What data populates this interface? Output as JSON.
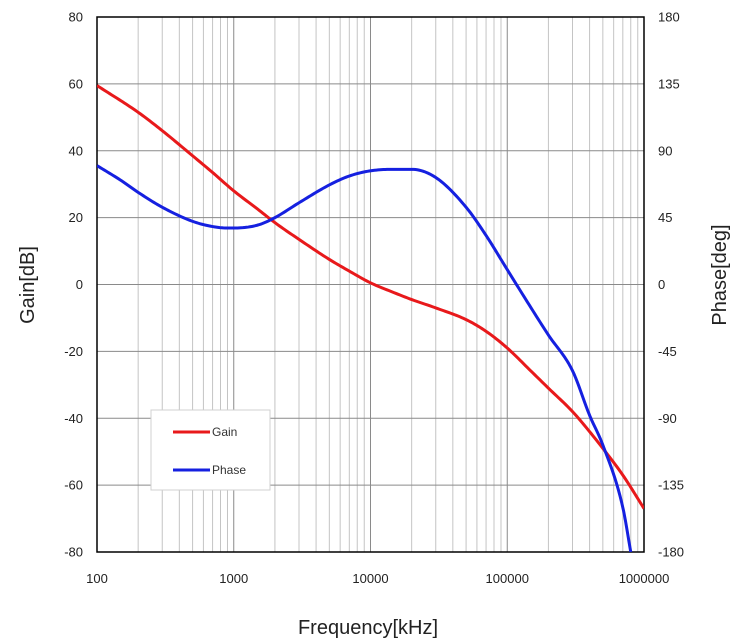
{
  "chart_data": {
    "type": "line",
    "title": "",
    "xlabel": "Frequency[kHz]",
    "ylabel": "Gain[dB]",
    "y2label": "Phase[deg]",
    "x_scale": "log",
    "xlim": [
      100,
      1000000
    ],
    "ylim": [
      -80,
      80
    ],
    "y2lim": [
      -180,
      180
    ],
    "grid": true,
    "legend_position": "bottom-left",
    "x_ticks": [
      "100",
      "1000",
      "10000",
      "100000",
      "1000000"
    ],
    "y_ticks": [
      "80",
      "60",
      "40",
      "20",
      "0",
      "-20",
      "-40",
      "-60",
      "-80"
    ],
    "y2_ticks": [
      "180",
      "135",
      "90",
      "45",
      "0",
      "-45",
      "-90",
      "-135",
      "-180"
    ],
    "series": [
      {
        "name": "Gain",
        "axis": "left",
        "color": "#e8191b",
        "x": [
          100,
          200,
          300,
          500,
          700,
          1000,
          1500,
          2000,
          3000,
          5000,
          7000,
          10000,
          15000,
          20000,
          30000,
          50000,
          70000,
          100000,
          150000,
          200000,
          300000,
          400000,
          500000,
          700000,
          1000000
        ],
        "y": [
          59.5,
          51.5,
          46,
          38.5,
          33.5,
          28,
          22.5,
          18.5,
          13.5,
          7.5,
          4,
          0.5,
          -2.5,
          -4.5,
          -7,
          -10.5,
          -14,
          -19,
          -26,
          -31,
          -38,
          -44,
          -49,
          -57,
          -67
        ]
      },
      {
        "name": "Phase",
        "axis": "right",
        "color": "#1520e0",
        "x": [
          100,
          150,
          200,
          300,
          500,
          700,
          900,
          1000,
          1500,
          2000,
          3000,
          5000,
          7000,
          10000,
          15000,
          20000,
          30000,
          50000,
          70000,
          100000,
          150000,
          200000,
          300000,
          400000,
          500000,
          700000,
          800000
        ],
        "y": [
          80,
          70,
          62,
          52,
          42.5,
          39,
          38,
          38,
          40,
          45,
          55,
          67,
          73,
          76.5,
          77.5,
          77.5,
          72,
          52,
          33,
          10,
          -16,
          -34,
          -58,
          -88,
          -108,
          -150,
          -180
        ]
      }
    ]
  }
}
